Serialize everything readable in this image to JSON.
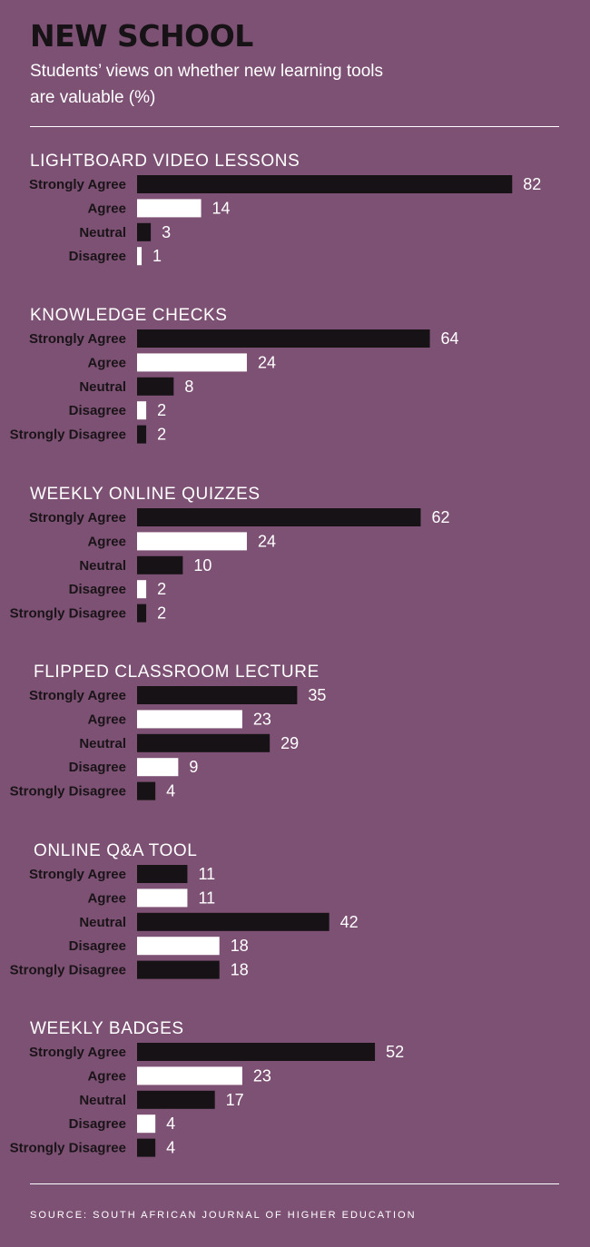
{
  "title": "NEW SCHOOL",
  "subtitle": "Students’ views on whether new learning tools are valuable (%)",
  "source": "SOURCE: SOUTH AFRICAN JOURNAL OF HIGHER EDUCATION",
  "colors": {
    "background": "#7d5174",
    "bar_dark": "#161215",
    "bar_light": "#ffffff",
    "text_light": "#ffffff"
  },
  "chart_data": [
    {
      "type": "bar",
      "orientation": "horizontal",
      "title": "LIGHTBOARD VIDEO LESSONS",
      "categories": [
        "Strongly Agree",
        "Agree",
        "Neutral",
        "Disagree"
      ],
      "values": [
        82,
        14,
        3,
        1
      ]
    },
    {
      "type": "bar",
      "orientation": "horizontal",
      "title": "KNOWLEDGE CHECKS",
      "categories": [
        "Strongly Agree",
        "Agree",
        "Neutral",
        "Disagree",
        "Strongly Disagree"
      ],
      "values": [
        64,
        24,
        8,
        2,
        2
      ]
    },
    {
      "type": "bar",
      "orientation": "horizontal",
      "title": "WEEKLY ONLINE QUIZZES",
      "categories": [
        "Strongly Agree",
        "Agree",
        "Neutral",
        "Disagree",
        "Strongly Disagree"
      ],
      "values": [
        62,
        24,
        10,
        2,
        2
      ]
    },
    {
      "type": "bar",
      "orientation": "horizontal",
      "title": "FLIPPED CLASSROOM LECTURE",
      "categories": [
        "Strongly Agree",
        "Agree",
        "Neutral",
        "Disagree",
        "Strongly Disagree"
      ],
      "values": [
        35,
        23,
        29,
        9,
        4
      ]
    },
    {
      "type": "bar",
      "orientation": "horizontal",
      "title": "ONLINE Q&A TOOL",
      "categories": [
        "Strongly Agree",
        "Agree",
        "Neutral",
        "Disagree",
        "Strongly Disagree"
      ],
      "values": [
        11,
        11,
        42,
        18,
        18
      ]
    },
    {
      "type": "bar",
      "orientation": "horizontal",
      "title": "WEEKLY BADGES",
      "categories": [
        "Strongly Agree",
        "Agree",
        "Neutral",
        "Disagree",
        "Strongly Disagree"
      ],
      "values": [
        52,
        23,
        17,
        4,
        4
      ]
    }
  ]
}
